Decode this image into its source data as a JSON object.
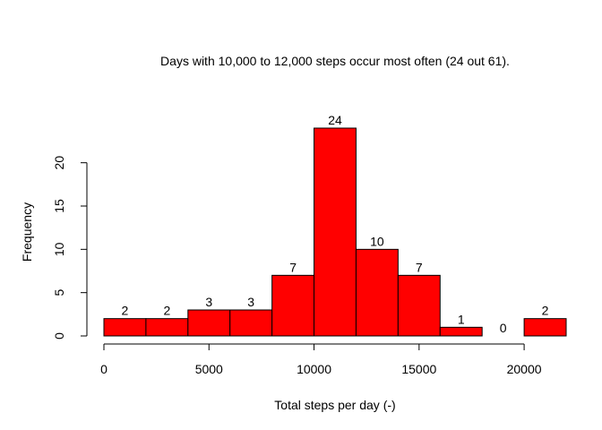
{
  "chart_data": {
    "type": "bar",
    "title": "Days with 10,000 to 12,000 steps occur most often (24 out 61).",
    "xlabel": "Total steps per day (-)",
    "ylabel": "Frequency",
    "bins": [
      {
        "start": 0,
        "end": 2000,
        "count": 2
      },
      {
        "start": 2000,
        "end": 4000,
        "count": 2
      },
      {
        "start": 4000,
        "end": 6000,
        "count": 3
      },
      {
        "start": 6000,
        "end": 8000,
        "count": 3
      },
      {
        "start": 8000,
        "end": 10000,
        "count": 7
      },
      {
        "start": 10000,
        "end": 12000,
        "count": 24
      },
      {
        "start": 12000,
        "end": 14000,
        "count": 10
      },
      {
        "start": 14000,
        "end": 16000,
        "count": 7
      },
      {
        "start": 16000,
        "end": 18000,
        "count": 1
      },
      {
        "start": 18000,
        "end": 20000,
        "count": 0
      },
      {
        "start": 20000,
        "end": 22000,
        "count": 2
      }
    ],
    "data_labels": [
      "2",
      "2",
      "3",
      "3",
      "7",
      "24",
      "10",
      "7",
      "1",
      "0",
      "2"
    ],
    "x_ticks": [
      0,
      5000,
      10000,
      15000,
      20000
    ],
    "x_tick_labels": [
      "0",
      "5000",
      "10000",
      "15000",
      "20000"
    ],
    "y_ticks": [
      0,
      5,
      10,
      15,
      20
    ],
    "y_tick_labels": [
      "0",
      "5",
      "10",
      "15",
      "20"
    ],
    "xlim": [
      0,
      22000
    ],
    "ylim": [
      0,
      24
    ],
    "grid": false,
    "bar_color": "#ff0000",
    "bar_border_color": "#000000"
  }
}
